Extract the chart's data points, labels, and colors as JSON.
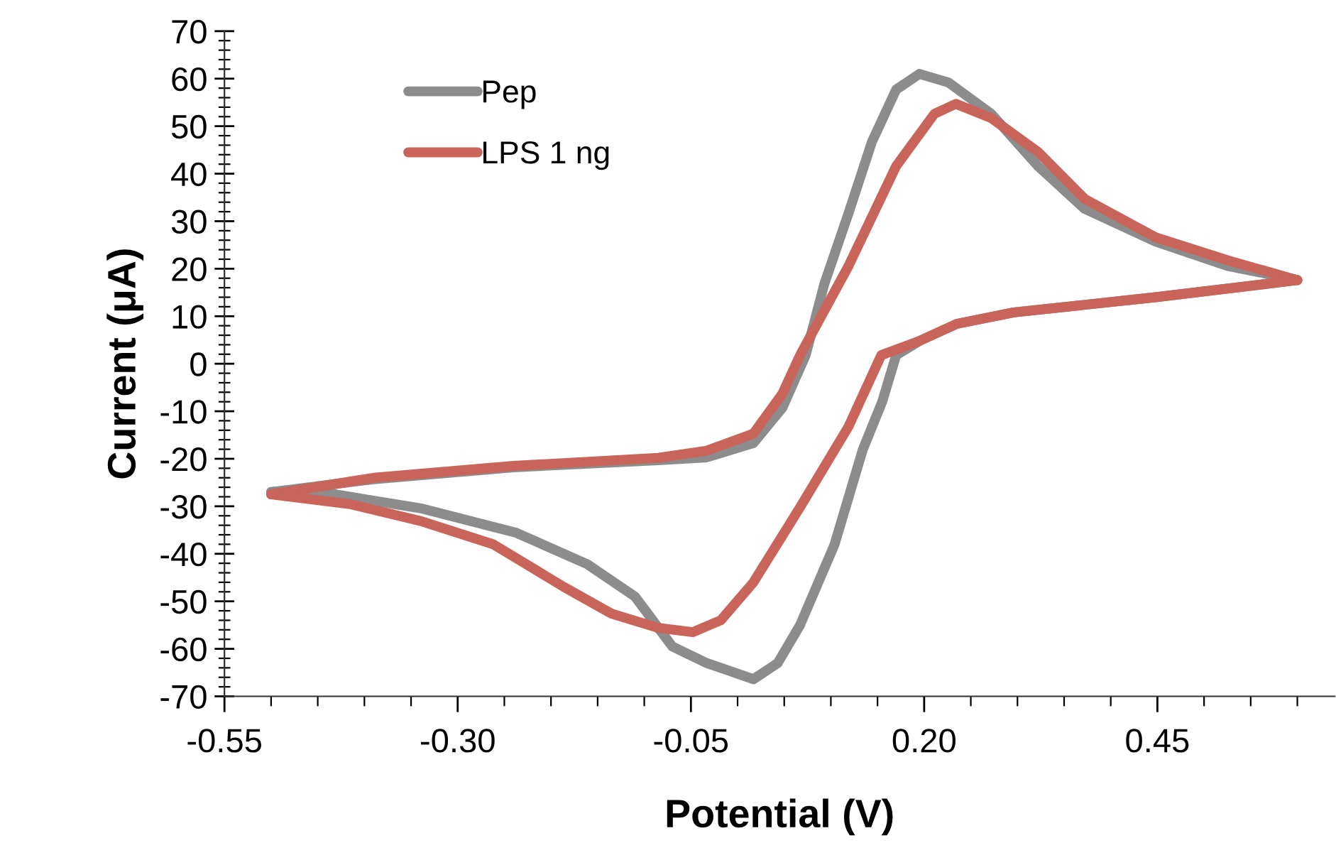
{
  "chart_data": {
    "type": "line",
    "xlabel": "Potential (V)",
    "ylabel": "Current (μA)",
    "xlim": [
      -0.55,
      0.64
    ],
    "ylim": [
      -70,
      70
    ],
    "xticks": [
      -0.55,
      {
        "value": -0.5,
        "label": null
      },
      {
        "value": -0.45,
        "label": null
      },
      {
        "value": -0.4,
        "label": null
      },
      {
        "value": -0.35,
        "label": null
      },
      {
        "value": -0.3,
        "label": "-0.30"
      },
      {
        "value": -0.25,
        "label": null
      },
      {
        "value": -0.2,
        "label": null
      },
      {
        "value": -0.15,
        "label": null
      },
      {
        "value": -0.1,
        "label": null
      },
      -0.05,
      {
        "value": 0.0,
        "label": null
      },
      {
        "value": 0.05,
        "label": null
      },
      {
        "value": 0.1,
        "label": null
      },
      {
        "value": 0.15,
        "label": null
      },
      {
        "value": 0.2,
        "label": "0.20"
      },
      {
        "value": 0.25,
        "label": null
      },
      {
        "value": 0.3,
        "label": null
      },
      {
        "value": 0.35,
        "label": null
      },
      {
        "value": 0.4,
        "label": null
      },
      0.45,
      {
        "value": 0.5,
        "label": null
      },
      {
        "value": 0.55,
        "label": null
      },
      {
        "value": 0.6,
        "label": null
      }
    ],
    "yticks": [
      -70,
      {
        "value": -68,
        "label": null
      },
      {
        "value": -66,
        "label": null
      },
      {
        "value": -64,
        "label": null
      },
      {
        "value": -62,
        "label": null
      },
      -60,
      {
        "value": -58,
        "label": null
      },
      {
        "value": -56,
        "label": null
      },
      {
        "value": -54,
        "label": null
      },
      {
        "value": -52,
        "label": null
      },
      -50,
      {
        "value": -48,
        "label": null
      },
      {
        "value": -46,
        "label": null
      },
      {
        "value": -44,
        "label": null
      },
      {
        "value": -42,
        "label": null
      },
      -40,
      {
        "value": -38,
        "label": null
      },
      {
        "value": -36,
        "label": null
      },
      {
        "value": -34,
        "label": null
      },
      {
        "value": -32,
        "label": null
      },
      -30,
      {
        "value": -28,
        "label": null
      },
      {
        "value": -26,
        "label": null
      },
      {
        "value": -24,
        "label": null
      },
      {
        "value": -22,
        "label": null
      },
      -20,
      {
        "value": -18,
        "label": null
      },
      {
        "value": -16,
        "label": null
      },
      {
        "value": -14,
        "label": null
      },
      {
        "value": -12,
        "label": null
      },
      -10,
      {
        "value": -8,
        "label": null
      },
      {
        "value": -6,
        "label": null
      },
      {
        "value": -4,
        "label": null
      },
      {
        "value": -2,
        "label": null
      },
      0,
      {
        "value": 2,
        "label": null
      },
      {
        "value": 4,
        "label": null
      },
      {
        "value": 6,
        "label": null
      },
      {
        "value": 8,
        "label": null
      },
      10,
      {
        "value": 12,
        "label": null
      },
      {
        "value": 14,
        "label": null
      },
      {
        "value": 16,
        "label": null
      },
      {
        "value": 18,
        "label": null
      },
      20,
      {
        "value": 22,
        "label": null
      },
      {
        "value": 24,
        "label": null
      },
      {
        "value": 26,
        "label": null
      },
      {
        "value": 28,
        "label": null
      },
      30,
      {
        "value": 32,
        "label": null
      },
      {
        "value": 34,
        "label": null
      },
      {
        "value": 36,
        "label": null
      },
      {
        "value": 38,
        "label": null
      },
      40,
      {
        "value": 42,
        "label": null
      },
      {
        "value": 44,
        "label": null
      },
      {
        "value": 46,
        "label": null
      },
      {
        "value": 48,
        "label": null
      },
      50,
      {
        "value": 52,
        "label": null
      },
      {
        "value": 54,
        "label": null
      },
      {
        "value": 56,
        "label": null
      },
      {
        "value": 58,
        "label": null
      },
      60,
      {
        "value": 62,
        "label": null
      },
      {
        "value": 64,
        "label": null
      },
      {
        "value": 66,
        "label": null
      },
      {
        "value": 68,
        "label": null
      },
      70
    ],
    "grid": false,
    "legend": "top left",
    "marker": "none",
    "line_style": "solid",
    "series": [
      {
        "name": "Pep",
        "color": "#8c8c8c",
        "x": [
          -0.5,
          -0.39,
          -0.24,
          -0.085,
          -0.033,
          0.017,
          0.048,
          0.073,
          0.093,
          0.119,
          0.144,
          0.17,
          0.195,
          0.226,
          0.272,
          0.322,
          0.372,
          0.448,
          0.525,
          0.6
        ],
        "values": [
          -27,
          -24.3,
          -21.8,
          -20.3,
          -19.7,
          -16.7,
          -9.3,
          1.8,
          16.8,
          31.7,
          46.7,
          57.7,
          61,
          59.2,
          52.6,
          41.6,
          32.6,
          25.7,
          20.6,
          17.6
        ]
      },
      {
        "color": "#8c8c8c",
        "x": [
          0.6,
          0.448,
          0.296,
          0.235,
          0.195,
          0.17,
          0.155,
          0.134,
          0.104,
          0.067,
          0.043,
          0.017,
          -0.033,
          -0.07,
          -0.11,
          -0.161,
          -0.237,
          -0.338,
          -0.44,
          -0.5
        ],
        "values": [
          17.6,
          14,
          10.8,
          8.4,
          4.8,
          1.8,
          -8,
          -18.2,
          -38,
          -55,
          -63,
          -66.4,
          -63,
          -59.5,
          -49,
          -42.2,
          -35.6,
          -30.5,
          -27.2,
          -27
        ]
      },
      {
        "name": "LPS 1 ng",
        "color": "#c9645a",
        "x": [
          -0.5,
          -0.39,
          -0.24,
          -0.085,
          -0.033,
          0.017,
          0.048,
          0.067,
          0.119,
          0.17,
          0.211,
          0.234,
          0.272,
          0.322,
          0.372,
          0.448,
          0.525,
          0.6
        ],
        "values": [
          -27.5,
          -24,
          -21.5,
          -19.8,
          -18.3,
          -14.7,
          -6.3,
          1.8,
          20.6,
          41.6,
          52.6,
          54.7,
          51.7,
          44.6,
          34.7,
          26.6,
          21.8,
          17.6
        ]
      },
      {
        "color": "#c9645a",
        "x": [
          0.6,
          0.448,
          0.296,
          0.235,
          0.195,
          0.154,
          0.119,
          0.067,
          0.017,
          -0.018,
          -0.048,
          -0.085,
          -0.135,
          -0.186,
          -0.262,
          -0.338,
          -0.414,
          -0.5
        ],
        "values": [
          17.6,
          14,
          10.8,
          8.4,
          4.8,
          1.8,
          -13.2,
          -30.2,
          -46,
          -54,
          -56.5,
          -55.6,
          -52.6,
          -47,
          -38,
          -33.2,
          -29.6,
          -27.5
        ]
      }
    ]
  }
}
